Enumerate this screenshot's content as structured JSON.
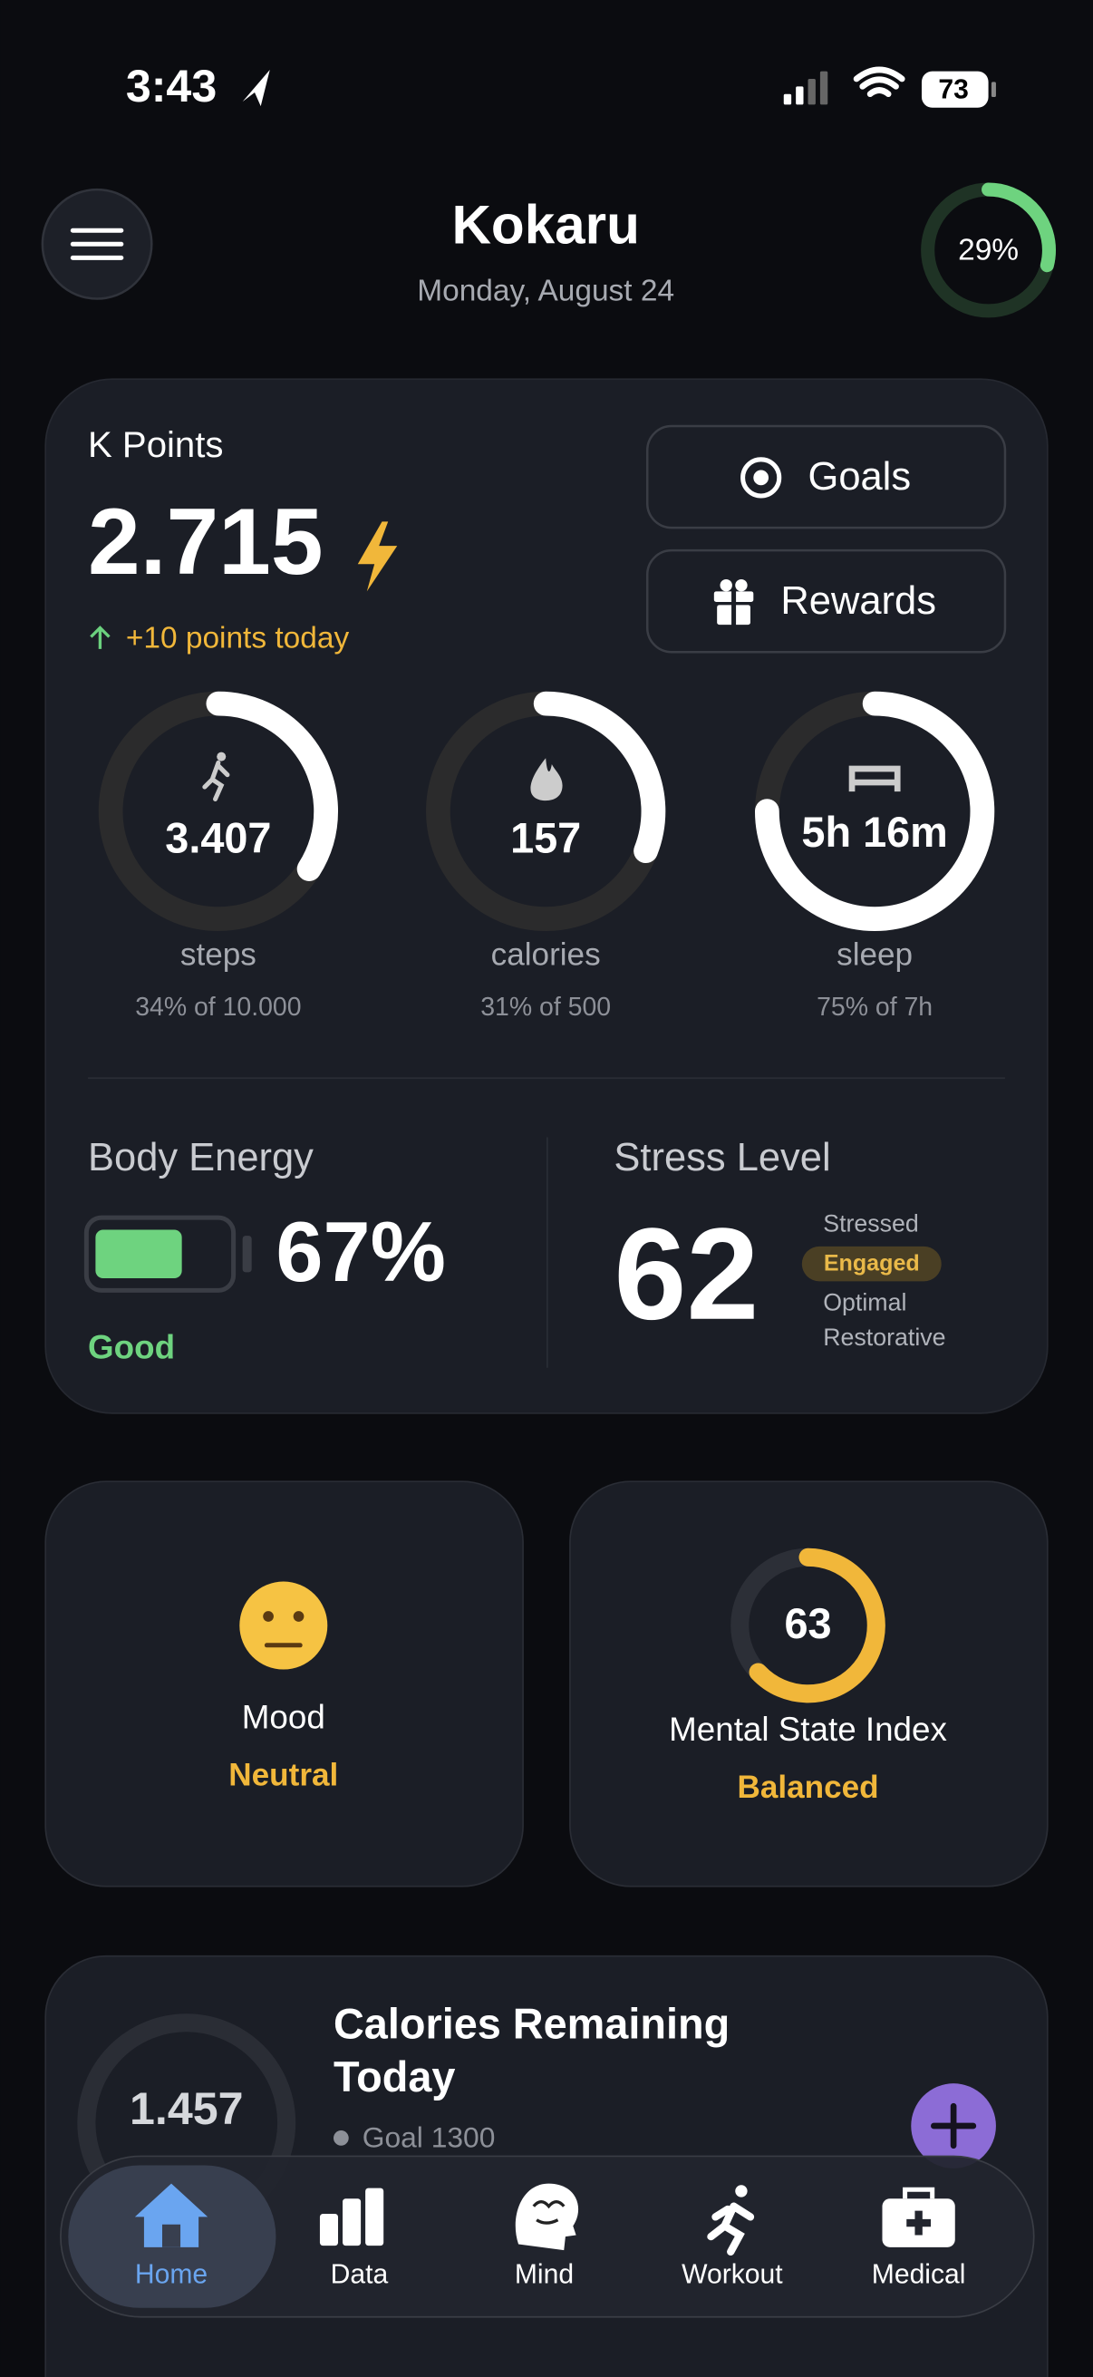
{
  "status_bar": {
    "time": "3:43",
    "battery": "73"
  },
  "header": {
    "title": "Kokaru",
    "date": "Monday, August 24",
    "progress": "29%"
  },
  "points_card": {
    "title": "K Points",
    "points": "2.715",
    "today": "+10 points today",
    "buttons": [
      "Goals",
      "Rewards"
    ],
    "rings": [
      {
        "value": "3.407",
        "label": "steps",
        "detail": "34% of 10.000"
      },
      {
        "value": "157",
        "label": "calories",
        "detail": "31% of 500"
      },
      {
        "value": "5h 16m",
        "label": "sleep",
        "detail": "75% of 7h"
      }
    ],
    "body_energy": {
      "title": "Body Energy",
      "value": "67%",
      "status": "Good"
    },
    "stress": {
      "title": "Stress Level",
      "value": "62",
      "levels": [
        "Stressed",
        "Engaged",
        "Optimal",
        "Restorative"
      ]
    }
  },
  "mood": {
    "title": "Mood",
    "value": "Neutral"
  },
  "mental": {
    "value": "63",
    "title": "Mental State Index",
    "status": "Balanced"
  },
  "calories": {
    "value": "1.457",
    "title_lines": [
      "Calories Remaining",
      "Today"
    ],
    "goal": "Goal 1300"
  },
  "tab_bar": [
    "Home",
    "Data",
    "Mind",
    "Workout",
    "Medical"
  ]
}
